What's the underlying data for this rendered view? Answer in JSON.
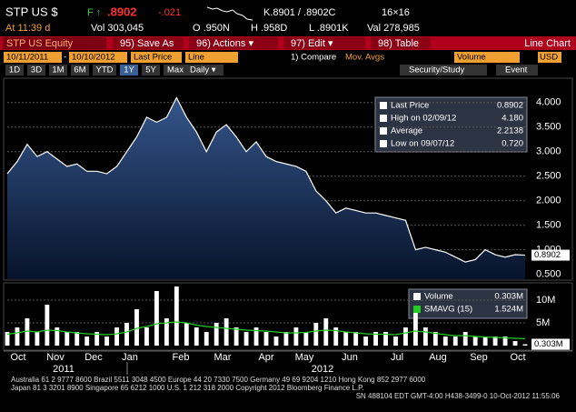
{
  "header": {
    "ticker": "STP US $",
    "flag": "F ↑",
    "price": ".8902",
    "change": "-.021",
    "quote": "K.8901 / .8902C",
    "size": "16×16",
    "time": "At 11:39 d",
    "volume": "Vol 303,045",
    "open": "O .950N",
    "high": "H .958D",
    "low": "L .8901K",
    "value": "Val 278,985"
  },
  "toolbar": {
    "security": "STP US Equity",
    "buttons": [
      "95) Save As",
      "96) Actions ▾",
      "97) Edit ▾",
      "98) Table"
    ],
    "view": "Line Chart"
  },
  "controls": {
    "start": "10/11/2011",
    "separator": "-",
    "end": "10/10/2012",
    "field": "Last Price",
    "style": "Line",
    "compare": "1) Compare",
    "movavg": "Mov. Avgs",
    "lower": "Volume",
    "currency": "USD",
    "periods": [
      "1D",
      "3D",
      "1M",
      "6M",
      "YTD",
      "1Y",
      "5Y",
      "Max"
    ],
    "frequency": "Daily ▾",
    "tools": [
      "Security/Study",
      "Event"
    ]
  },
  "chart_data": [
    {
      "type": "line",
      "color": "#ffffff",
      "values": [
        2.55,
        2.8,
        3.15,
        2.9,
        3.0,
        2.85,
        2.7,
        2.75,
        2.6,
        2.6,
        2.55,
        2.7,
        3.0,
        3.3,
        3.7,
        3.6,
        3.7,
        4.1,
        3.7,
        3.4,
        3.0,
        3.4,
        3.55,
        3.3,
        3.0,
        3.2,
        2.9,
        2.8,
        2.75,
        2.7,
        2.6,
        2.2,
        2.0,
        1.75,
        1.85,
        1.8,
        1.75,
        1.75,
        1.7,
        1.65,
        1.6,
        1.0,
        1.05,
        1.0,
        0.95,
        0.85,
        0.75,
        0.8,
        1.0,
        0.9,
        0.85,
        0.9,
        0.89
      ],
      "ylim": [
        0.4,
        4.33
      ],
      "yticks": [
        {
          "value": 4,
          "label": "4.000"
        },
        {
          "value": 3.5,
          "label": "3.500"
        },
        {
          "value": 3,
          "label": "3.000"
        },
        {
          "value": 2.5,
          "label": "2.500"
        },
        {
          "value": 2,
          "label": "2.000"
        },
        {
          "value": 1.5,
          "label": "1.500"
        },
        {
          "value": 1,
          "label": "1.000"
        },
        {
          "value": 0.5,
          "label": "0.500"
        }
      ],
      "last": {
        "value": 0.8902,
        "label": "0.8902"
      },
      "legend": [
        {
          "name": "Last Price",
          "value": "0.8902"
        },
        {
          "name": "High on 02/09/12",
          "value": "4.180"
        },
        {
          "name": "Average",
          "value": "2.2138"
        },
        {
          "name": "Low on 09/07/12",
          "value": "0.720"
        }
      ],
      "grid": true
    },
    {
      "type": "bar",
      "color": "#ffffff",
      "values": [
        3,
        4,
        6,
        3,
        9,
        4,
        3,
        3,
        2,
        3,
        2,
        4,
        5,
        8,
        4,
        12,
        6,
        13,
        5,
        4,
        3,
        5,
        6,
        4,
        3,
        4,
        3,
        2,
        3,
        4,
        3,
        5,
        6,
        4,
        3,
        3,
        2,
        3,
        3,
        2,
        4,
        8,
        4,
        3,
        2,
        2,
        3,
        2,
        2,
        2,
        2,
        1,
        0.303
      ],
      "smavg": {
        "color": "#22cc22",
        "values": [
          2.5,
          2.8,
          3.2,
          3.0,
          3.4,
          3.3,
          3.0,
          2.8,
          2.6,
          2.5,
          2.4,
          2.6,
          3.0,
          3.8,
          4.2,
          4.8,
          5.0,
          5.2,
          5.0,
          4.5,
          4.2,
          4.0,
          3.8,
          3.6,
          3.4,
          3.3,
          3.2,
          3.0,
          2.8,
          2.8,
          2.9,
          3.2,
          3.4,
          3.3,
          3.0,
          2.8,
          2.6,
          2.5,
          2.5,
          2.4,
          2.8,
          3.2,
          3.0,
          2.7,
          2.4,
          2.2,
          2.2,
          2.0,
          1.9,
          1.8,
          1.7,
          1.6,
          1.524
        ]
      },
      "ylim": [
        0,
        12.4
      ],
      "yticks": [
        {
          "value": 10,
          "label": "10M"
        },
        {
          "value": 5,
          "label": "5M"
        }
      ],
      "last": {
        "value": 0.303,
        "label": "0.303M"
      },
      "legend": [
        {
          "name": "Volume",
          "value": "0.303M"
        },
        {
          "name": "SMAVG (15)",
          "value": "1.524M"
        }
      ]
    }
  ],
  "axis": {
    "months": [
      "Oct",
      "Nov",
      "Dec",
      "Jan",
      "Feb",
      "Mar",
      "Apr",
      "May",
      "Jun",
      "Jul",
      "Aug",
      "Sep",
      "Oct"
    ],
    "years": [
      "2011",
      "2012"
    ]
  },
  "footer": [
    "Australia 61 2 9777 8600 Brazil 5511 3048 4500 Europe 44 20 7330 7500 Germany 49 69 9204 1210 Hong Kong 852 2977 6000",
    "Japan 81 3 3201 8900          Singapore 65 6212 1000          U.S. 1 212 318 2000          Copyright 2012 Bloomberg Finance L.P.",
    "SN 488104 EDT  GMT-4:00 H438-3499-0 10-Oct-2012 11:55:06"
  ]
}
